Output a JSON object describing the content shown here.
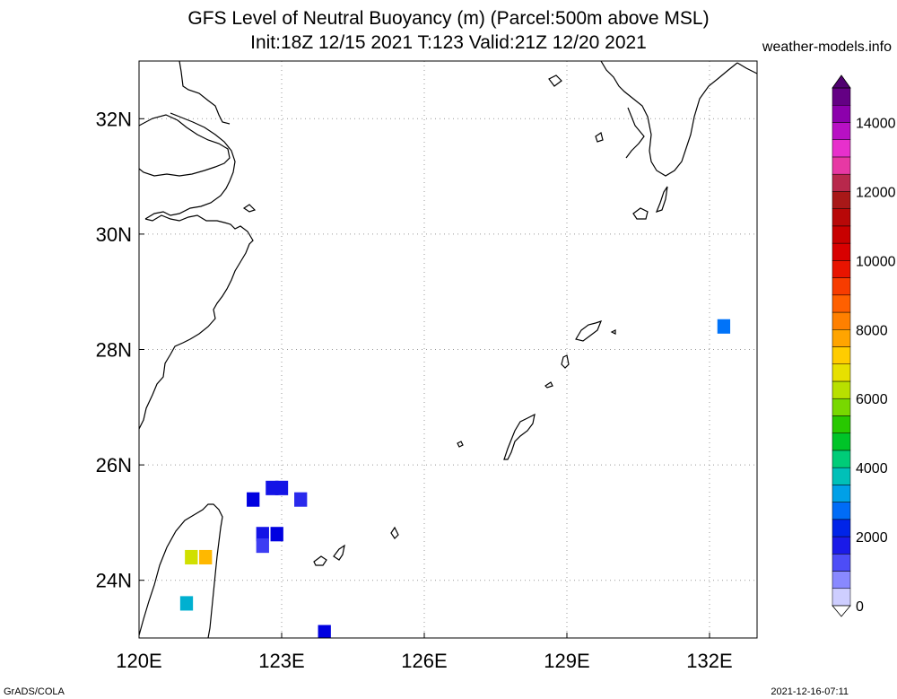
{
  "header": {
    "title_line1": "GFS Level of Neutral Buoyancy (m) (Parcel:500m above MSL)",
    "title_line2": "Init:18Z 12/15 2021 T:123 Valid:21Z 12/20 2021",
    "site": "weather-models.info"
  },
  "map": {
    "lon_range": [
      120,
      133
    ],
    "lat_range": [
      23,
      33
    ],
    "lon_ticks": [
      {
        "value": 120,
        "label": "120E"
      },
      {
        "value": 123,
        "label": "123E"
      },
      {
        "value": 126,
        "label": "126E"
      },
      {
        "value": 129,
        "label": "129E"
      },
      {
        "value": 132,
        "label": "132E"
      }
    ],
    "lat_ticks": [
      {
        "value": 24,
        "label": "24N"
      },
      {
        "value": 26,
        "label": "26N"
      },
      {
        "value": 28,
        "label": "28N"
      },
      {
        "value": 30,
        "label": "30N"
      },
      {
        "value": 32,
        "label": "32N"
      }
    ],
    "grid": "dotted",
    "coastline_color": "#000000"
  },
  "colorbar": {
    "min": 0,
    "max": 15000,
    "placement": "right",
    "tick_labels": [
      {
        "value": 0,
        "label": "0"
      },
      {
        "value": 2000,
        "label": "2000"
      },
      {
        "value": 4000,
        "label": "4000"
      },
      {
        "value": 6000,
        "label": "6000"
      },
      {
        "value": 8000,
        "label": "8000"
      },
      {
        "value": 10000,
        "label": "10000"
      },
      {
        "value": 12000,
        "label": "12000"
      },
      {
        "value": 14000,
        "label": "14000"
      }
    ],
    "color_stops": [
      {
        "value": 0,
        "color": "#f0f0ff"
      },
      {
        "value": 1000,
        "color": "#6666ff"
      },
      {
        "value": 2000,
        "color": "#0000e0"
      },
      {
        "value": 3000,
        "color": "#0090ff"
      },
      {
        "value": 4000,
        "color": "#00d0a0"
      },
      {
        "value": 5000,
        "color": "#00c000"
      },
      {
        "value": 6000,
        "color": "#a0e000"
      },
      {
        "value": 7000,
        "color": "#ffe000"
      },
      {
        "value": 8000,
        "color": "#ff9000"
      },
      {
        "value": 9000,
        "color": "#ff5000"
      },
      {
        "value": 10000,
        "color": "#e00000"
      },
      {
        "value": 11000,
        "color": "#c00000"
      },
      {
        "value": 12000,
        "color": "#a02020"
      },
      {
        "value": 13000,
        "color": "#ff40d0"
      },
      {
        "value": 14000,
        "color": "#a000c0"
      },
      {
        "value": 15000,
        "color": "#500070"
      }
    ]
  },
  "field_cells": [
    {
      "lon": 122.4,
      "lat": 25.4,
      "value": 2000
    },
    {
      "lon": 122.8,
      "lat": 25.6,
      "value": 1800
    },
    {
      "lon": 123.0,
      "lat": 25.6,
      "value": 1800
    },
    {
      "lon": 123.4,
      "lat": 25.4,
      "value": 1600
    },
    {
      "lon": 122.6,
      "lat": 24.8,
      "value": 1800
    },
    {
      "lon": 122.9,
      "lat": 24.8,
      "value": 2000
    },
    {
      "lon": 122.6,
      "lat": 24.6,
      "value": 1400
    },
    {
      "lon": 132.3,
      "lat": 28.4,
      "value": 2800
    },
    {
      "lon": 123.9,
      "lat": 23.1,
      "value": 2000
    },
    {
      "lon": 121.1,
      "lat": 24.4,
      "value": 6500
    },
    {
      "lon": 121.4,
      "lat": 24.4,
      "value": 7500
    },
    {
      "lon": 121.0,
      "lat": 23.6,
      "value": 3500
    }
  ],
  "footer": {
    "left": "GrADS/COLA",
    "right": "2021-12-16-07:11"
  }
}
